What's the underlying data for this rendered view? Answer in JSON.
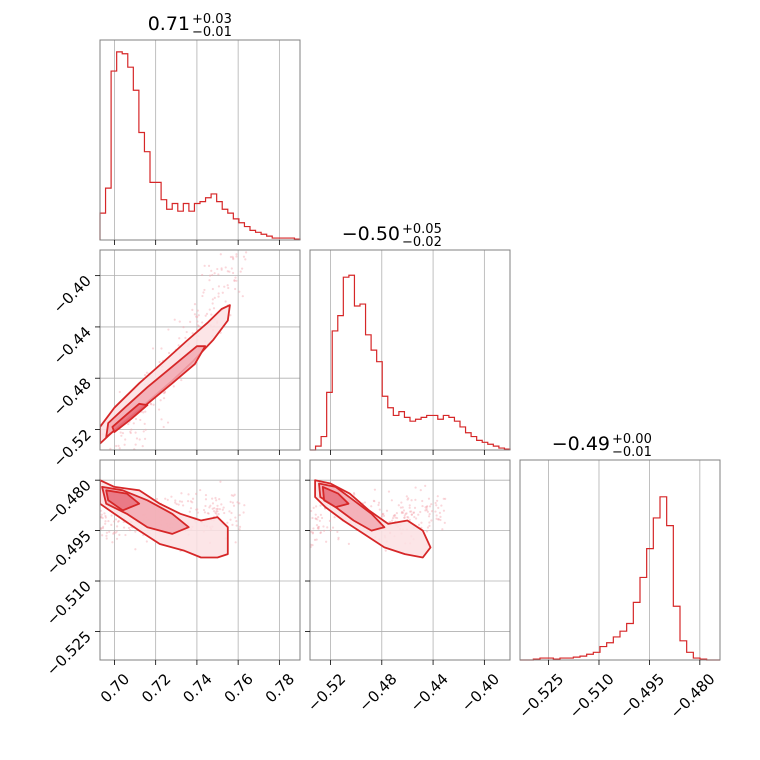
{
  "colors": {
    "main": "#d62728",
    "points": "#f4a6b0",
    "fill_outer": "#fbe0e3",
    "fill_mid": "#f2a9b1",
    "fill_inner": "#e8707d"
  },
  "chart_data": {
    "type": "corner",
    "params": [
      {
        "title": {
          "median": "0.71",
          "plus": "+0.03",
          "minus": "−0.01"
        },
        "range": [
          0.693,
          0.79
        ],
        "ticks": [
          0.7,
          0.72,
          0.74,
          0.76,
          0.78
        ],
        "ticklabels": [
          "0.70",
          "0.72",
          "0.74",
          "0.76",
          "0.78"
        ]
      },
      {
        "title": {
          "median": "−0.50",
          "plus": "+0.05",
          "minus": "−0.02"
        },
        "range": [
          -0.536,
          -0.38
        ],
        "ticks": [
          -0.52,
          -0.48,
          -0.44,
          -0.4
        ],
        "ticklabels": [
          "−0.52",
          "−0.48",
          "−0.44",
          "−0.40"
        ]
      },
      {
        "title": {
          "median": "−0.49",
          "plus": "+0.00",
          "minus": "−0.01"
        },
        "range": [
          -0.5335,
          -0.474
        ],
        "ticks": [
          -0.525,
          -0.51,
          -0.495,
          -0.48
        ],
        "ticklabels": [
          "−0.525",
          "−0.510",
          "−0.495",
          "−0.480"
        ]
      }
    ],
    "histograms": [
      {
        "edges_start": 0.693,
        "edges_end": 0.79,
        "counts": [
          0.14,
          0.27,
          0.88,
          0.98,
          0.97,
          0.9,
          0.78,
          0.56,
          0.46,
          0.3,
          0.3,
          0.21,
          0.16,
          0.19,
          0.15,
          0.19,
          0.15,
          0.19,
          0.2,
          0.22,
          0.24,
          0.2,
          0.16,
          0.14,
          0.11,
          0.09,
          0.07,
          0.05,
          0.04,
          0.03,
          0.02,
          0.01,
          0.01,
          0.01,
          0.01,
          0.005
        ]
      },
      {
        "edges_start": -0.536,
        "edges_end": -0.38,
        "counts": [
          0.0,
          0.02,
          0.07,
          0.3,
          0.62,
          0.7,
          0.9,
          0.91,
          0.75,
          0.76,
          0.6,
          0.52,
          0.46,
          0.28,
          0.22,
          0.18,
          0.2,
          0.17,
          0.15,
          0.16,
          0.17,
          0.18,
          0.18,
          0.16,
          0.18,
          0.17,
          0.15,
          0.12,
          0.09,
          0.07,
          0.05,
          0.04,
          0.03,
          0.02,
          0.01,
          0.005
        ]
      },
      {
        "edges_start": -0.5335,
        "edges_end": -0.474,
        "counts": [
          0.0,
          0.0,
          0.005,
          0.01,
          0.01,
          0.005,
          0.01,
          0.01,
          0.015,
          0.02,
          0.03,
          0.04,
          0.07,
          0.09,
          0.12,
          0.15,
          0.19,
          0.3,
          0.43,
          0.58,
          0.74,
          0.85,
          0.7,
          0.28,
          0.1,
          0.04,
          0.01,
          0.005,
          0.0,
          0.0
        ]
      }
    ],
    "pairs": [
      {
        "x_param": 0,
        "y_param": 1,
        "ylim": [
          -0.536,
          -0.38
        ],
        "levels": [
          [
            [
              0.693,
              -0.531
            ],
            [
              0.703,
              -0.516
            ],
            [
              0.715,
              -0.5
            ],
            [
              0.728,
              -0.482
            ],
            [
              0.738,
              -0.467
            ],
            [
              0.748,
              -0.45
            ],
            [
              0.755,
              -0.435
            ],
            [
              0.756,
              -0.423
            ],
            [
              0.752,
              -0.426
            ],
            [
              0.745,
              -0.437
            ],
            [
              0.735,
              -0.451
            ],
            [
              0.724,
              -0.467
            ],
            [
              0.712,
              -0.484
            ],
            [
              0.7,
              -0.503
            ],
            [
              0.693,
              -0.518
            ]
          ],
          [
            [
              0.696,
              -0.526
            ],
            [
              0.705,
              -0.514
            ],
            [
              0.716,
              -0.5
            ],
            [
              0.728,
              -0.484
            ],
            [
              0.739,
              -0.469
            ],
            [
              0.744,
              -0.455
            ],
            [
              0.74,
              -0.455
            ],
            [
              0.728,
              -0.471
            ],
            [
              0.716,
              -0.487
            ],
            [
              0.705,
              -0.503
            ],
            [
              0.697,
              -0.515
            ]
          ],
          [
            [
              0.7,
              -0.522
            ],
            [
              0.708,
              -0.512
            ],
            [
              0.716,
              -0.501
            ],
            [
              0.712,
              -0.5
            ],
            [
              0.704,
              -0.511
            ],
            [
              0.699,
              -0.518
            ]
          ]
        ]
      },
      {
        "x_param": 0,
        "y_param": 2,
        "ylim": [
          -0.5335,
          -0.474
        ],
        "levels": [
          [
            [
              0.693,
              -0.48
            ],
            [
              0.7,
              -0.482
            ],
            [
              0.712,
              -0.483
            ],
            [
              0.722,
              -0.487
            ],
            [
              0.732,
              -0.49
            ],
            [
              0.742,
              -0.492
            ],
            [
              0.75,
              -0.491
            ],
            [
              0.755,
              -0.494
            ],
            [
              0.755,
              -0.502
            ],
            [
              0.75,
              -0.503
            ],
            [
              0.742,
              -0.503
            ],
            [
              0.734,
              -0.501
            ],
            [
              0.722,
              -0.499
            ],
            [
              0.712,
              -0.495
            ],
            [
              0.7,
              -0.49
            ],
            [
              0.693,
              -0.487
            ]
          ],
          [
            [
              0.694,
              -0.482
            ],
            [
              0.704,
              -0.483
            ],
            [
              0.716,
              -0.486
            ],
            [
              0.728,
              -0.49
            ],
            [
              0.736,
              -0.494
            ],
            [
              0.728,
              -0.496
            ],
            [
              0.716,
              -0.494
            ],
            [
              0.706,
              -0.49
            ],
            [
              0.696,
              -0.487
            ]
          ],
          [
            [
              0.696,
              -0.483
            ],
            [
              0.706,
              -0.484
            ],
            [
              0.712,
              -0.487
            ],
            [
              0.704,
              -0.489
            ],
            [
              0.697,
              -0.486
            ]
          ]
        ]
      },
      {
        "x_param": 1,
        "y_param": 2,
        "ylim": [
          -0.5335,
          -0.474
        ],
        "levels": [
          [
            [
              -0.532,
              -0.48
            ],
            [
              -0.52,
              -0.481
            ],
            [
              -0.505,
              -0.484
            ],
            [
              -0.49,
              -0.489
            ],
            [
              -0.475,
              -0.493
            ],
            [
              -0.46,
              -0.492
            ],
            [
              -0.448,
              -0.495
            ],
            [
              -0.442,
              -0.5
            ],
            [
              -0.448,
              -0.503
            ],
            [
              -0.462,
              -0.502
            ],
            [
              -0.478,
              -0.5
            ],
            [
              -0.494,
              -0.496
            ],
            [
              -0.51,
              -0.492
            ],
            [
              -0.524,
              -0.488
            ],
            [
              -0.532,
              -0.485
            ]
          ],
          [
            [
              -0.529,
              -0.481
            ],
            [
              -0.516,
              -0.482
            ],
            [
              -0.502,
              -0.486
            ],
            [
              -0.488,
              -0.49
            ],
            [
              -0.478,
              -0.494
            ],
            [
              -0.488,
              -0.495
            ],
            [
              -0.502,
              -0.492
            ],
            [
              -0.516,
              -0.488
            ],
            [
              -0.528,
              -0.485
            ]
          ],
          [
            [
              -0.526,
              -0.482
            ],
            [
              -0.514,
              -0.484
            ],
            [
              -0.506,
              -0.487
            ],
            [
              -0.516,
              -0.488
            ],
            [
              -0.525,
              -0.486
            ]
          ]
        ]
      }
    ]
  }
}
